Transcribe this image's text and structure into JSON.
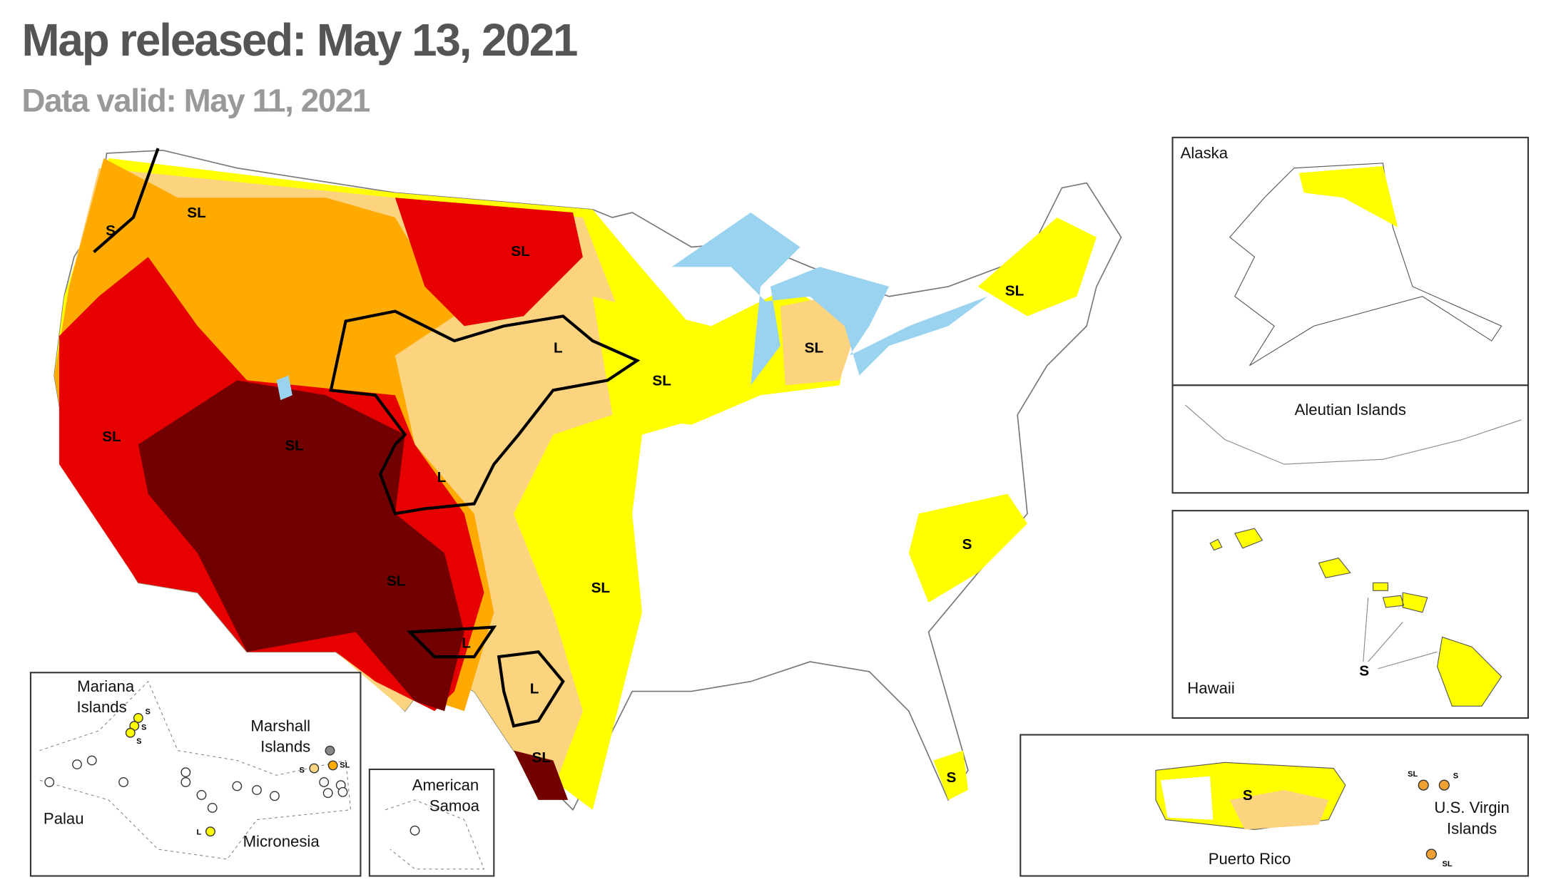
{
  "header": {
    "title": "Map released: May 13, 2021",
    "subtitle": "Data valid: May 11, 2021"
  },
  "impact_labels": [
    "SL",
    "S",
    "SL",
    "L",
    "SL",
    "SL",
    "SL",
    "SL",
    "SL",
    "L",
    "S",
    "SL",
    "SL",
    "L",
    "L",
    "SL",
    "S"
  ],
  "insets": {
    "alaska": "Alaska",
    "aleutian": "Aleutian Islands",
    "hawaii": "Hawaii",
    "hawaii_label": "S",
    "puerto_rico": "Puerto Rico",
    "puerto_rico_label": "S",
    "virgin_islands": [
      "U.S. Virgin",
      "Islands"
    ],
    "virgin_labels": [
      "SL",
      "S",
      "SL"
    ],
    "mariana": [
      "Mariana",
      "Islands"
    ],
    "mariana_labels": [
      "S",
      "S",
      "S"
    ],
    "marshall": [
      "Marshall",
      "Islands"
    ],
    "marshall_labels": [
      "S",
      "SL"
    ],
    "palau": "Palau",
    "micronesia": "Micronesia",
    "micronesia_label": "L",
    "samoa": [
      "American",
      "Samoa"
    ]
  }
}
